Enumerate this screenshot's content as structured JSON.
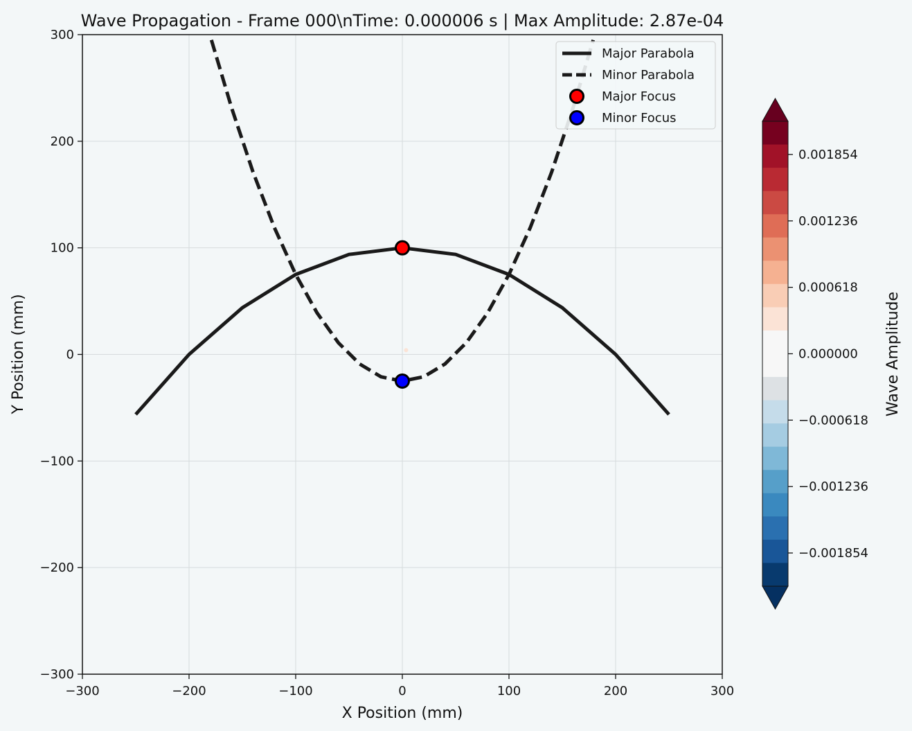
{
  "chart_data": {
    "type": "line",
    "title": "Wave Propagation - Frame 000\\nTime: 0.000006 s | Max Amplitude: 2.87e-04",
    "xlabel": "X Position (mm)",
    "ylabel": "Y Position (mm)",
    "xlim": [
      -300,
      300
    ],
    "ylim": [
      -300,
      300
    ],
    "xticks": [
      -300,
      -200,
      -100,
      0,
      100,
      200,
      300
    ],
    "yticks": [
      -300,
      -200,
      -100,
      0,
      100,
      200,
      300
    ],
    "xtick_labels": [
      "−300",
      "−200",
      "−100",
      "0",
      "100",
      "200",
      "300"
    ],
    "ytick_labels": [
      "−300",
      "−200",
      "−100",
      "0",
      "100",
      "200",
      "300"
    ],
    "grid": true,
    "legend_position": "top-right",
    "series": [
      {
        "name": "Major Parabola",
        "style": "solid",
        "color": "#1a1a1a",
        "x": [
          -250,
          -200,
          -150,
          -100,
          -50,
          0,
          50,
          100,
          150,
          200,
          250
        ],
        "y": [
          -56.3,
          0,
          43.8,
          75,
          93.8,
          100,
          93.8,
          75,
          43.8,
          0,
          -56.3
        ]
      },
      {
        "name": "Minor Parabola",
        "style": "dashed",
        "color": "#1a1a1a",
        "x": [
          -179,
          -160,
          -140,
          -120,
          -100,
          -80,
          -60,
          -40,
          -20,
          0,
          20,
          40,
          60,
          80,
          100,
          120,
          140,
          160,
          179
        ],
        "y": [
          295,
          231,
          171,
          119,
          75,
          39,
          11,
          -9,
          -21,
          -25,
          -21,
          -9,
          11,
          39,
          75,
          119,
          171,
          231,
          295
        ]
      }
    ],
    "points": [
      {
        "name": "Major Focus",
        "x": 0,
        "y": 100,
        "color": "#ff0000"
      },
      {
        "name": "Minor Focus",
        "x": 0,
        "y": -25,
        "color": "#0000ff"
      }
    ],
    "colorbar": {
      "label": "Wave Amplitude",
      "ticks": [
        "0.001854",
        "0.001236",
        "0.000618",
        "0.000000",
        "−0.000618",
        "−0.001236",
        "−0.001854"
      ],
      "tick_values": [
        0.001854,
        0.001236,
        0.000618,
        0,
        -0.000618,
        -0.001236,
        -0.001854
      ],
      "range": [
        -0.002163,
        0.002163
      ],
      "colors_top_to_bottom": [
        "#76011f",
        "#a11228",
        "#b92a33",
        "#cb4a43",
        "#df6d56",
        "#eb9172",
        "#f5b191",
        "#f9cdb5",
        "#fbe3d6",
        "#f7f7f7",
        "#f7f7f7",
        "#dde1e4",
        "#c5dcea",
        "#a5cce2",
        "#7fb8d7",
        "#569fc9",
        "#3a89bf",
        "#2a70b0",
        "#195698",
        "#083a6e"
      ],
      "extend_top_color": "#67001f",
      "extend_bottom_color": "#053061"
    }
  }
}
